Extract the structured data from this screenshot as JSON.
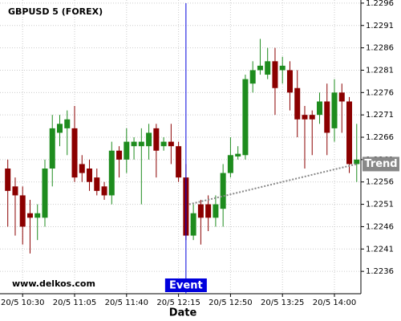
{
  "chart_data": {
    "type": "candlestick",
    "title": "GBPUSD 5 (FOREX)",
    "x_label": "Date",
    "watermark": "www.delkos.com",
    "categories": [
      null,
      null,
      "20/5 10:30",
      null,
      null,
      null,
      null,
      null,
      null,
      "20/5 11:05",
      null,
      null,
      null,
      null,
      null,
      null,
      "20/5 11:40",
      null,
      null,
      null,
      null,
      null,
      null,
      "20/5 12:15",
      null,
      null,
      null,
      null,
      null,
      null,
      "20/5 12:50",
      null,
      null,
      null,
      null,
      null,
      null,
      "20/5 13:25",
      null,
      null,
      null,
      null,
      null,
      null,
      "20/5 14:00",
      null,
      null,
      null
    ],
    "open": [
      1.2259,
      1.2255,
      1.2253,
      1.2249,
      1.2248,
      1.2248,
      1.2259,
      1.2267,
      1.2268,
      1.2268,
      1.226,
      1.2259,
      1.2257,
      1.2255,
      1.2253,
      1.2263,
      1.2261,
      1.2264,
      1.2264,
      1.2264,
      1.2268,
      1.2264,
      1.2265,
      1.2264,
      1.2257,
      1.2244,
      1.2251,
      1.2251,
      1.2248,
      1.225,
      1.2258,
      1.22617,
      1.2262,
      1.2278,
      1.2281,
      1.228,
      1.2283,
      1.2281,
      1.2281,
      1.2277,
      1.2271,
      1.2271,
      1.2271,
      1.2274,
      1.2268,
      1.2276,
      1.2274,
      1.226
    ],
    "high": [
      1.2261,
      1.2257,
      1.2255,
      1.2252,
      1.2251,
      1.2261,
      1.2271,
      1.2271,
      1.2272,
      1.2273,
      1.2262,
      1.2261,
      1.2259,
      1.2256,
      1.2265,
      1.2264,
      1.2268,
      1.2266,
      1.2268,
      1.2269,
      1.2269,
      1.2266,
      1.2269,
      1.2265,
      1.226,
      1.2251,
      1.2252,
      1.2253,
      1.2253,
      1.226,
      1.2266,
      1.2264,
      1.228,
      1.2283,
      1.2288,
      1.2286,
      1.2286,
      1.2284,
      1.2283,
      1.2281,
      1.2273,
      1.2272,
      1.2276,
      1.2278,
      1.2279,
      1.2278,
      1.2275,
      1.2269
    ],
    "low": [
      1.2246,
      1.2244,
      1.2242,
      1.224,
      1.2243,
      1.2246,
      1.2255,
      1.2264,
      1.2262,
      1.2256,
      1.2256,
      1.2254,
      1.2253,
      1.2252,
      1.2251,
      1.2257,
      1.2258,
      1.2261,
      1.2251,
      1.2261,
      1.2257,
      1.2263,
      1.226,
      1.2256,
      1.2243,
      1.2243,
      1.2242,
      1.2245,
      1.2246,
      1.2246,
      1.2257,
      1.2261,
      1.2261,
      1.2276,
      1.228,
      1.2279,
      1.2271,
      1.2278,
      1.2272,
      1.2266,
      1.2259,
      1.2262,
      1.2269,
      1.2262,
      1.2265,
      1.2267,
      1.2258,
      1.2256
    ],
    "close": [
      1.2254,
      1.2253,
      1.2246,
      1.2248,
      1.2249,
      1.2259,
      1.2268,
      1.2269,
      1.227,
      1.2257,
      1.2258,
      1.2256,
      1.2254,
      1.2253,
      1.2263,
      1.2261,
      1.2265,
      1.2265,
      1.2265,
      1.2267,
      1.2263,
      1.2265,
      1.2264,
      1.2257,
      1.2244,
      1.2249,
      1.2248,
      1.2248,
      1.2251,
      1.2258,
      1.2262,
      1.22623,
      1.2279,
      1.2281,
      1.2282,
      1.2283,
      1.2277,
      1.2282,
      1.2276,
      1.227,
      1.227,
      1.227,
      1.2274,
      1.2267,
      1.2276,
      1.2274,
      1.226,
      1.2261
    ],
    "up_color": "#1e8c1e",
    "down_color": "#8b0000",
    "ylim": [
      1.2231,
      1.22967
    ],
    "yticks": [
      1.2236,
      1.2241,
      1.2246,
      1.2251,
      1.2256,
      1.2261,
      1.2266,
      1.2271,
      1.2276,
      1.2281,
      1.2286,
      1.2291,
      1.2296
    ],
    "grid": true,
    "event": {
      "label": "Event",
      "index": 24,
      "color": "#0000dd"
    },
    "trend": {
      "label": "Trend",
      "from_index": 24,
      "from": 1.2251,
      "to_index": 47,
      "to": 1.226,
      "color": "#888888"
    }
  }
}
